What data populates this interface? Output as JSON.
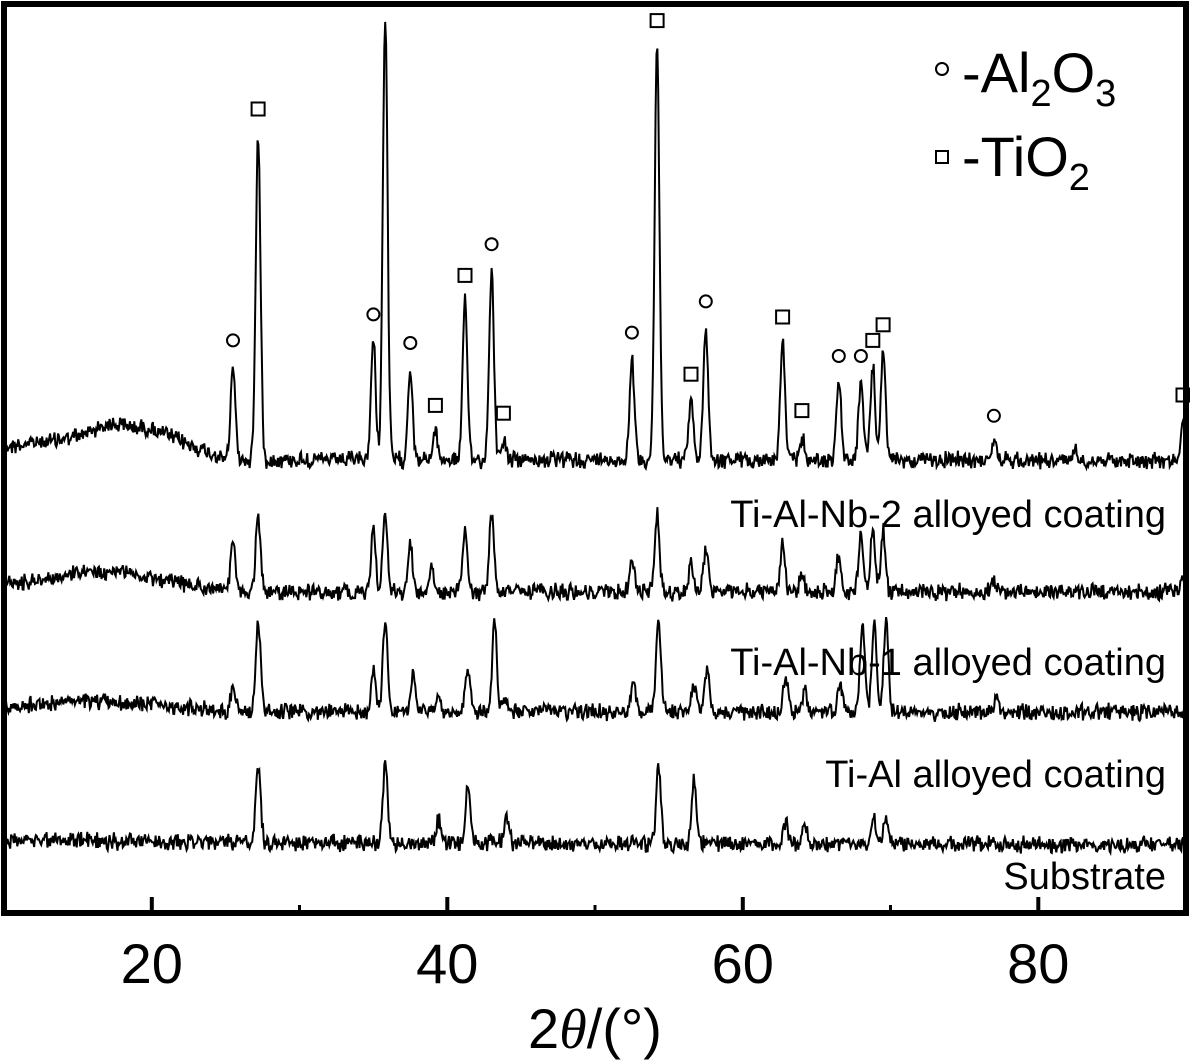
{
  "chart_data": {
    "type": "line",
    "xlabel_prefix": "2",
    "xlabel_theta": "θ",
    "xlabel_suffix": "/(°)",
    "xlim": [
      10,
      90
    ],
    "xticks": [
      20,
      40,
      60,
      80
    ],
    "xtick_labels": [
      "20",
      "40",
      "60",
      "80"
    ],
    "grid": false,
    "yticks_shown": false,
    "legend_placement": "top-right",
    "legend": [
      {
        "marker": "circle",
        "text": "-Al",
        "sub1": "2",
        "mid": "O",
        "sub2": "3"
      },
      {
        "marker": "square",
        "text": "-TiO",
        "sub1": "2",
        "mid": "",
        "sub2": ""
      }
    ],
    "series": [
      {
        "name": "Ti-Al-Nb-2 alloyed coating",
        "baseline": [
          [
            10,
            0.5
          ],
          [
            15,
            0.9
          ],
          [
            17,
            1.4
          ],
          [
            20,
            1.2
          ],
          [
            25,
            0.0
          ],
          [
            40,
            0.0
          ],
          [
            90,
            0.0
          ]
        ],
        "peaks": [
          [
            25.5,
            3.6
          ],
          [
            27.2,
            12.5
          ],
          [
            35.0,
            4.6
          ],
          [
            35.8,
            17.0
          ],
          [
            37.5,
            3.5
          ],
          [
            39.2,
            1.1
          ],
          [
            41.2,
            6.1
          ],
          [
            43.0,
            7.3
          ],
          [
            43.8,
            0.8
          ],
          [
            52.5,
            3.9
          ],
          [
            54.2,
            15.9
          ],
          [
            56.5,
            2.3
          ],
          [
            57.5,
            5.1
          ],
          [
            62.7,
            4.5
          ],
          [
            64.0,
            0.9
          ],
          [
            66.5,
            3.0
          ],
          [
            68.0,
            3.0
          ],
          [
            68.8,
            3.6
          ],
          [
            69.5,
            4.2
          ],
          [
            77.0,
            0.7
          ],
          [
            82.5,
            0.4
          ],
          [
            89.8,
            1.5
          ]
        ],
        "markers": [
          [
            25.5,
            "circle"
          ],
          [
            27.2,
            "square"
          ],
          [
            35.0,
            "circle"
          ],
          [
            35.8,
            "square"
          ],
          [
            37.5,
            "circle"
          ],
          [
            39.2,
            "square"
          ],
          [
            41.2,
            "square"
          ],
          [
            43.0,
            "circle"
          ],
          [
            43.8,
            "square"
          ],
          [
            52.5,
            "circle"
          ],
          [
            54.2,
            "square"
          ],
          [
            56.5,
            "square"
          ],
          [
            57.5,
            "circle"
          ],
          [
            62.7,
            "square"
          ],
          [
            64.0,
            "square"
          ],
          [
            66.5,
            "circle"
          ],
          [
            68.0,
            "circle"
          ],
          [
            68.8,
            "square"
          ],
          [
            69.5,
            "square"
          ],
          [
            77.0,
            "circle"
          ],
          [
            89.8,
            "square"
          ]
        ]
      },
      {
        "name": "Ti-Al-Nb-1 alloyed coating",
        "baseline": [
          [
            10,
            0.3
          ],
          [
            15,
            0.7
          ],
          [
            18,
            0.8
          ],
          [
            22,
            0.3
          ],
          [
            26,
            0.0
          ],
          [
            90,
            0.0
          ]
        ],
        "peaks": [
          [
            25.5,
            1.8
          ],
          [
            27.2,
            3.0
          ],
          [
            35.0,
            2.3
          ],
          [
            35.8,
            3.0
          ],
          [
            37.5,
            1.8
          ],
          [
            38.9,
            0.9
          ],
          [
            41.2,
            2.3
          ],
          [
            43.0,
            3.0
          ],
          [
            52.5,
            1.2
          ],
          [
            54.2,
            3.0
          ],
          [
            56.5,
            1.1
          ],
          [
            57.5,
            1.7
          ],
          [
            62.7,
            1.8
          ],
          [
            64.0,
            0.6
          ],
          [
            66.5,
            1.4
          ],
          [
            68.0,
            2.3
          ],
          [
            68.8,
            2.3
          ],
          [
            69.5,
            2.3
          ],
          [
            77.0,
            0.5
          ],
          [
            89.8,
            0.6
          ]
        ]
      },
      {
        "name": "Ti-Al alloyed coating",
        "baseline": [
          [
            10,
            0.2
          ],
          [
            15,
            0.4
          ],
          [
            20,
            0.3
          ],
          [
            24,
            0.1
          ],
          [
            27,
            0.0
          ],
          [
            90,
            0.0
          ]
        ],
        "peaks": [
          [
            25.5,
            0.9
          ],
          [
            27.2,
            3.5
          ],
          [
            35.0,
            1.7
          ],
          [
            35.8,
            3.5
          ],
          [
            37.7,
            1.4
          ],
          [
            39.4,
            0.6
          ],
          [
            41.4,
            1.8
          ],
          [
            43.2,
            3.5
          ],
          [
            44.0,
            0.5
          ],
          [
            52.6,
            1.0
          ],
          [
            54.3,
            3.5
          ],
          [
            56.7,
            1.0
          ],
          [
            57.6,
            1.8
          ],
          [
            62.9,
            1.3
          ],
          [
            64.2,
            0.7
          ],
          [
            66.6,
            1.1
          ],
          [
            68.1,
            3.5
          ],
          [
            68.9,
            3.5
          ],
          [
            69.7,
            3.5
          ],
          [
            77.2,
            0.6
          ]
        ]
      },
      {
        "name": "Substrate",
        "baseline": [
          [
            10,
            0.2
          ],
          [
            15,
            0.2
          ],
          [
            20,
            0.1
          ],
          [
            90,
            0.0
          ]
        ],
        "peaks": [
          [
            27.2,
            3.0
          ],
          [
            35.8,
            3.0
          ],
          [
            39.4,
            0.9
          ],
          [
            41.4,
            2.3
          ],
          [
            44.0,
            1.0
          ],
          [
            54.3,
            3.0
          ],
          [
            56.7,
            2.4
          ],
          [
            62.9,
            0.9
          ],
          [
            64.2,
            0.8
          ],
          [
            68.9,
            0.9
          ],
          [
            69.7,
            0.9
          ]
        ]
      }
    ]
  }
}
